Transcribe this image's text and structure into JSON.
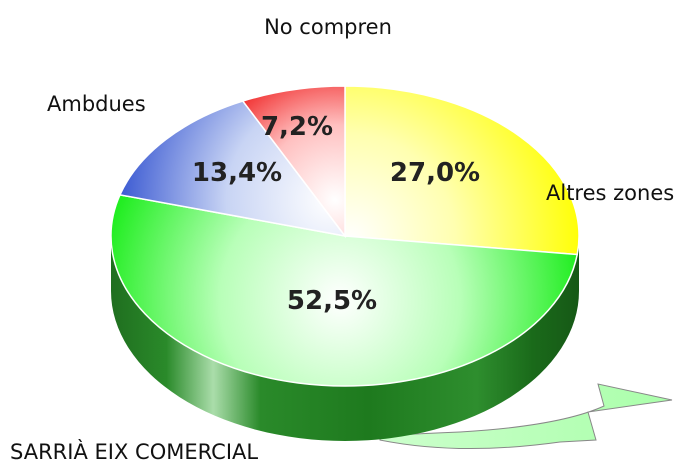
{
  "chart_data": {
    "type": "pie",
    "categories": [
      "Altres zones",
      "SARRIÀ EIX COMERCIAL",
      "Ambdues",
      "No compren"
    ],
    "values": [
      27.0,
      52.5,
      13.4,
      7.2
    ],
    "value_labels": [
      "27,0%",
      "52,5%",
      "13,4%",
      "7,2%"
    ],
    "colors": [
      "#ffff00",
      "#33ee33",
      "#2244cc",
      "#ee1111"
    ],
    "title": "",
    "legend": "none",
    "style": "3d"
  }
}
